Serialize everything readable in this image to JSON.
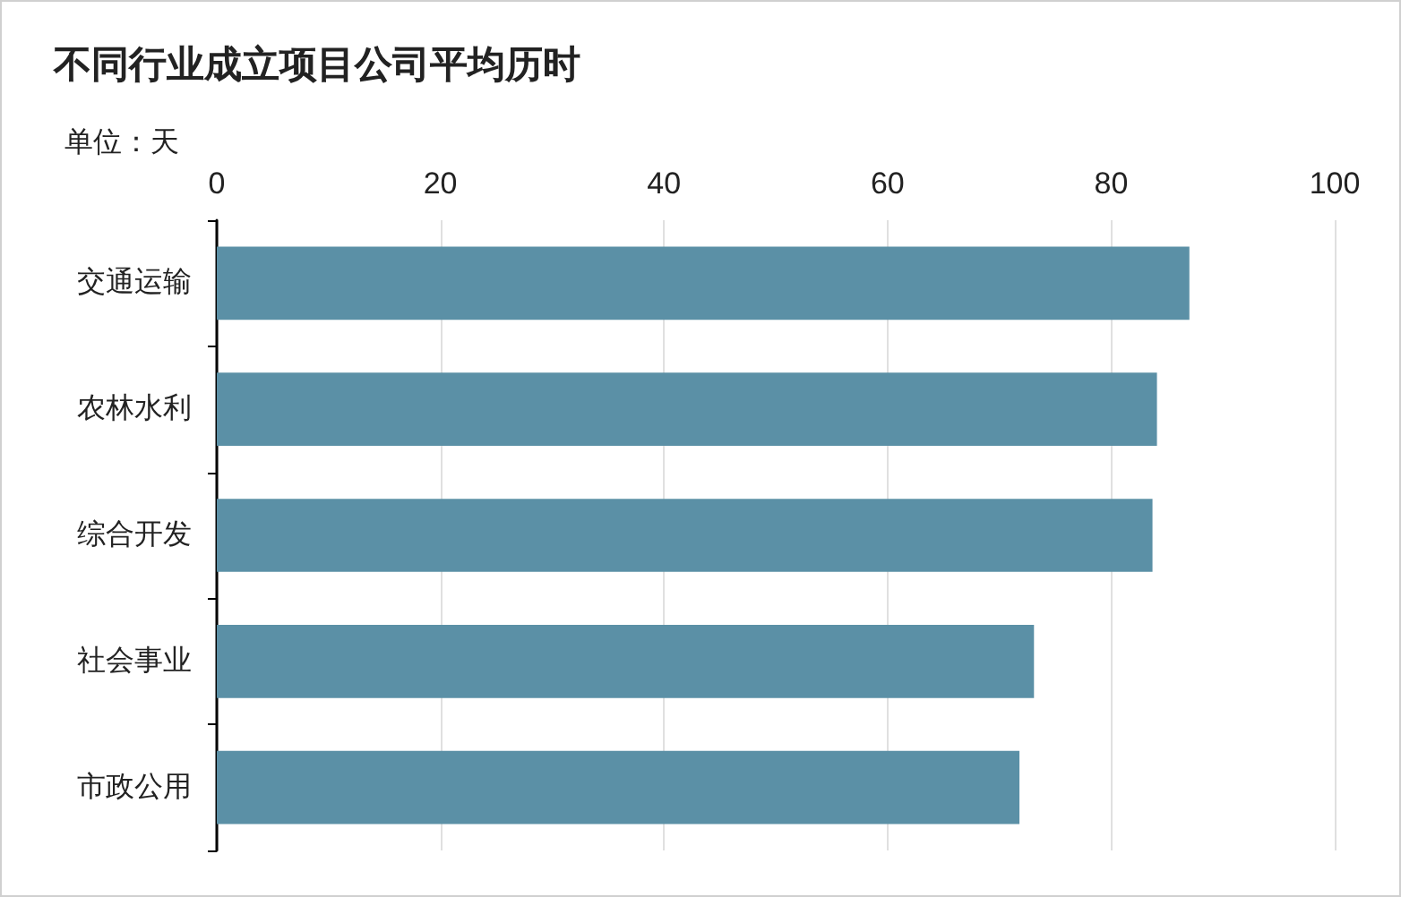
{
  "chart_data": {
    "type": "bar",
    "orientation": "horizontal",
    "title": "不同行业成立项目公司平均历时",
    "ylabel": "单位：天",
    "categories": [
      "交通运输",
      "农林水利",
      "综合开发",
      "社会事业",
      "市政公用"
    ],
    "values": [
      87.0,
      84.1,
      83.7,
      73.1,
      71.8
    ],
    "color": "#5b90a6",
    "xlim": [
      0,
      100
    ],
    "xticks": [
      0,
      20,
      40,
      60,
      80,
      100
    ],
    "grid": "x"
  }
}
